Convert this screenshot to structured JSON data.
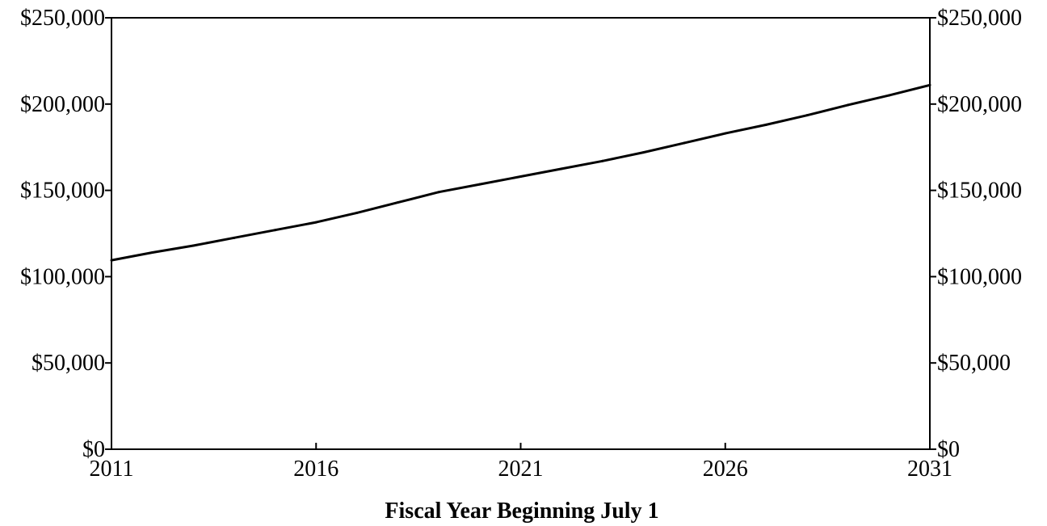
{
  "chart_data": {
    "type": "line",
    "title": "",
    "xlabel": "Fiscal Year Beginning July 1",
    "ylabel": "",
    "xlim": [
      2011,
      2031
    ],
    "ylim": [
      0,
      250000
    ],
    "x_ticks": [
      2011,
      2016,
      2021,
      2026,
      2031
    ],
    "x_tick_labels": [
      "2011",
      "2016",
      "2021",
      "2026",
      "2031"
    ],
    "y_ticks": [
      0,
      50000,
      100000,
      150000,
      200000,
      250000
    ],
    "y_tick_labels": [
      "$0",
      "$50,000",
      "$100,000",
      "$150,000",
      "$200,000",
      "$250,000"
    ],
    "right_y_tick_labels": [
      "$0",
      "$50,000",
      "$100,000",
      "$150,000",
      "$200,000",
      "$250,000"
    ],
    "grid": false,
    "legend": "none",
    "series": [
      {
        "color": "#000000",
        "x": [
          2011,
          2012,
          2013,
          2014,
          2015,
          2016,
          2017,
          2018,
          2019,
          2020,
          2021,
          2022,
          2023,
          2024,
          2025,
          2026,
          2027,
          2028,
          2029,
          2030,
          2031
        ],
        "values": [
          109500,
          114000,
          118000,
          122500,
          127000,
          131500,
          137000,
          143000,
          149000,
          153500,
          158000,
          162500,
          167000,
          172000,
          177500,
          183000,
          188000,
          193500,
          199500,
          205000,
          211000
        ]
      }
    ]
  }
}
